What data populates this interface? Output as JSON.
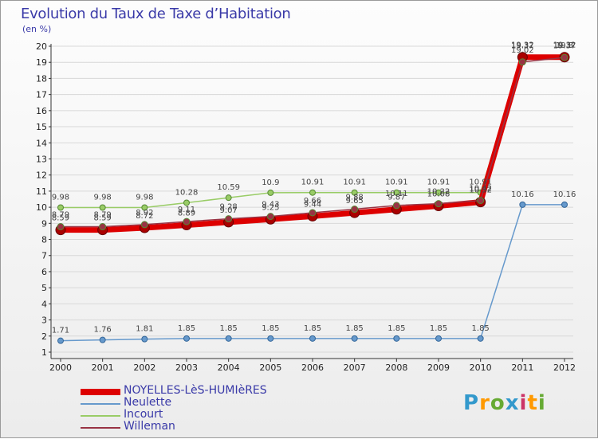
{
  "title": "Evolution du Taux de Taxe d’Habitation",
  "subtitle": "(en %)",
  "logo": "Proxiti",
  "chart_data": {
    "type": "line",
    "x": [
      "2000",
      "2001",
      "2002",
      "2003",
      "2004",
      "2005",
      "2006",
      "2007",
      "2008",
      "2009",
      "2010",
      "2011",
      "2012"
    ],
    "ylim": [
      1,
      20
    ],
    "yticks": [
      1,
      2,
      3,
      4,
      5,
      6,
      7,
      8,
      9,
      10,
      11,
      12,
      13,
      14,
      15,
      16,
      17,
      18,
      19,
      20
    ],
    "series": [
      {
        "name": "NOYELLES-LèS-HUMIèRES",
        "color": "#dd0000",
        "values": [
          8.59,
          8.59,
          8.72,
          8.89,
          9.07,
          9.25,
          9.44,
          9.65,
          9.87,
          10.08,
          10.32,
          19.32,
          19.32
        ],
        "labels": [
          "8.59",
          "8.59",
          "8.72",
          "8.89",
          "9.07",
          "9.25",
          "9.44",
          "9.65",
          "9.87",
          "10.08",
          "10.32",
          "19.32",
          "19.32"
        ]
      },
      {
        "name": "Neulette",
        "color": "#6699cc",
        "values": [
          1.71,
          1.76,
          1.81,
          1.85,
          1.85,
          1.85,
          1.85,
          1.85,
          1.85,
          1.85,
          1.85,
          10.16,
          10.16
        ],
        "labels": [
          "1.71",
          "1.76",
          "1.81",
          "1.85",
          "1.85",
          "1.85",
          "1.85",
          "1.85",
          "1.85",
          "1.85",
          "1.85",
          "10.16",
          "10.16"
        ]
      },
      {
        "name": "Incourt",
        "color": "#99cc66",
        "values": [
          9.98,
          9.98,
          9.98,
          10.28,
          10.59,
          10.9,
          10.91,
          10.91,
          10.91,
          10.91,
          10.91,
          19.37,
          19.37
        ],
        "labels": [
          "9.98",
          "9.98",
          "9.98",
          "10.28",
          "10.59",
          "10.9",
          "10.91",
          "10.91",
          "10.91",
          "10.91",
          "10.91",
          "19.37",
          "19.37"
        ]
      },
      {
        "name": "Willeman",
        "color": "#993344",
        "values": [
          8.79,
          8.79,
          8.92,
          9.11,
          9.28,
          9.43,
          9.66,
          9.88,
          10.11,
          10.22,
          10.42,
          19.02,
          19.3
        ],
        "labels": [
          "8.79",
          "8.79",
          "8.92",
          "9.11",
          "9.28",
          "9.43",
          "9.66",
          "9.88",
          "10.11",
          "10.22",
          "10.42",
          "19.02",
          "19.3"
        ]
      }
    ]
  }
}
